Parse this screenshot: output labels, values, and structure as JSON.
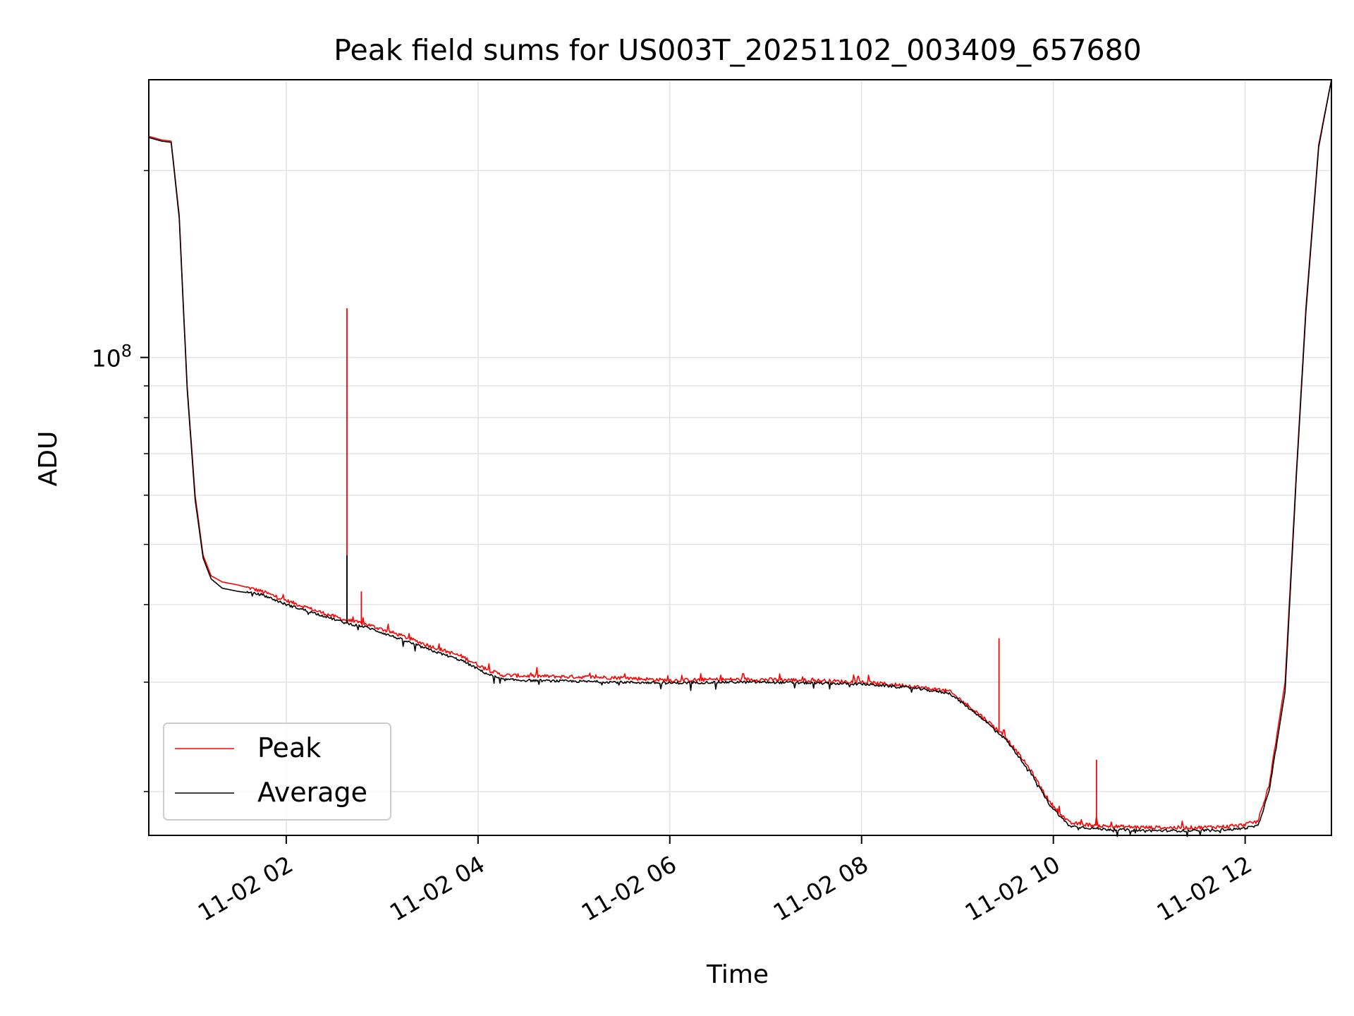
{
  "chart_data": {
    "type": "line",
    "title": "Peak field sums for US003T_20251102_003409_657680",
    "xlabel": "Time",
    "ylabel": "ADU",
    "y_scale": "log",
    "x_range": [
      "11-02 00:34",
      "11-02 12:54"
    ],
    "ylim": [
      17000000,
      280000000
    ],
    "x_ticks": [
      "11-02 02",
      "11-02 04",
      "11-02 06",
      "11-02 08",
      "11-02 10",
      "11-02 12"
    ],
    "y_tick_label": {
      "base": "10",
      "exponent": "8"
    },
    "grid": true,
    "legend_position": "lower-left",
    "colors": {
      "peak": "#ff0000",
      "average": "#000000",
      "grid": "#e3e3e3"
    },
    "series": [
      {
        "name": "Peak",
        "x": [
          "00:34",
          "00:42",
          "00:48",
          "00:53",
          "00:58",
          "01:03",
          "01:08",
          "01:13",
          "01:20",
          "01:30",
          "01:45",
          "02:00",
          "02:20",
          "02:38",
          "02:50",
          "03:10",
          "03:30",
          "03:50",
          "04:05",
          "04:15",
          "04:30",
          "05:00",
          "05:30",
          "06:00",
          "06:30",
          "07:00",
          "07:30",
          "08:00",
          "08:30",
          "08:55",
          "09:15",
          "09:30",
          "09:45",
          "09:58",
          "10:10",
          "10:30",
          "11:00",
          "11:30",
          "11:55",
          "12:08",
          "12:15",
          "12:25",
          "12:32",
          "12:38",
          "12:46",
          "12:54"
        ],
        "y": [
          227000000,
          224000000,
          223000000,
          170000000,
          90000000,
          60000000,
          48000000,
          44500000,
          43500000,
          43000000,
          42000000,
          40600000,
          39000000,
          37700000,
          37200000,
          35800000,
          34300000,
          33000000,
          31500000,
          30800000,
          30700000,
          30600000,
          30500000,
          30200000,
          30300000,
          30300000,
          30200000,
          30000000,
          29600000,
          29000000,
          26500000,
          24500000,
          21800000,
          19200000,
          17800000,
          17600000,
          17500000,
          17500000,
          17600000,
          17900000,
          20500000,
          30000000,
          65000000,
          120000000,
          220000000,
          280000000
        ]
      },
      {
        "name": "Average",
        "x": [
          "00:34",
          "00:42",
          "00:48",
          "00:53",
          "00:58",
          "01:03",
          "01:08",
          "01:13",
          "01:20",
          "01:30",
          "01:45",
          "02:00",
          "02:20",
          "02:38",
          "02:50",
          "03:10",
          "03:30",
          "03:50",
          "04:05",
          "04:15",
          "04:30",
          "05:00",
          "05:30",
          "06:00",
          "06:30",
          "07:00",
          "07:30",
          "08:00",
          "08:30",
          "08:55",
          "09:15",
          "09:30",
          "09:45",
          "09:58",
          "10:10",
          "10:30",
          "11:00",
          "11:30",
          "11:55",
          "12:08",
          "12:15",
          "12:25",
          "12:32",
          "12:38",
          "12:46",
          "12:54"
        ],
        "y": [
          226000000,
          223000000,
          222000000,
          168000000,
          89000000,
          59000000,
          47500000,
          44000000,
          42500000,
          42000000,
          41500000,
          40000000,
          38600000,
          37300000,
          36800000,
          35300000,
          33800000,
          32500000,
          31000000,
          30300000,
          30200000,
          30100000,
          30000000,
          29900000,
          30000000,
          30000000,
          29900000,
          29800000,
          29400000,
          28800000,
          26300000,
          24300000,
          21600000,
          19000000,
          17600000,
          17400000,
          17300000,
          17300000,
          17400000,
          17600000,
          20000000,
          29000000,
          64000000,
          118000000,
          218000000,
          280000000
        ]
      }
    ],
    "annotations": [
      {
        "series": "Peak",
        "x": "02:38",
        "y": 120000000,
        "note": "spike"
      },
      {
        "series": "Average",
        "x": "02:38",
        "y": 48000000,
        "note": "spike"
      },
      {
        "series": "Peak",
        "x": "02:47",
        "y": 42000000,
        "note": "spike"
      },
      {
        "series": "Peak",
        "x": "09:26",
        "y": 35300000,
        "note": "spike"
      },
      {
        "series": "Peak",
        "x": "10:27",
        "y": 22500000,
        "note": "spike"
      }
    ]
  }
}
